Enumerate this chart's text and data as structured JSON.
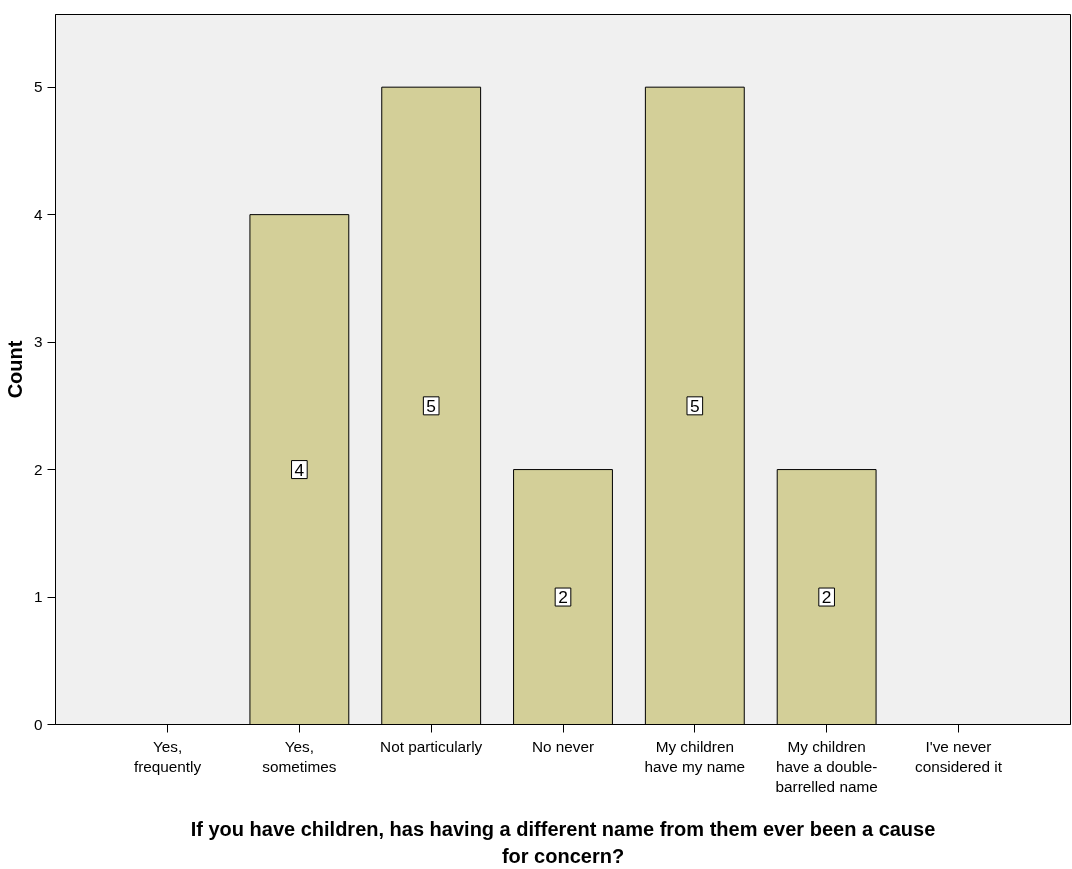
{
  "chart_data": {
    "type": "bar",
    "categories": [
      "Yes,\nfrequently",
      "Yes,\nsometimes",
      "Not particularly",
      "No never",
      "My children\nhave my name",
      "My children\nhave a double-\nbarrelled name",
      "I've never\nconsidered it"
    ],
    "values": [
      0,
      4,
      5,
      2,
      5,
      2,
      0
    ],
    "value_labels": [
      null,
      "4",
      "5",
      "2",
      "5",
      "2",
      null
    ],
    "color": "#d3cf98",
    "ylabel": "Count",
    "xlabel": "If you have children, has having a different name from them ever been a cause for concern?",
    "ylim": [
      0,
      5.57
    ],
    "yticks": [
      0,
      1,
      2,
      3,
      4,
      5
    ],
    "grid": false
  }
}
